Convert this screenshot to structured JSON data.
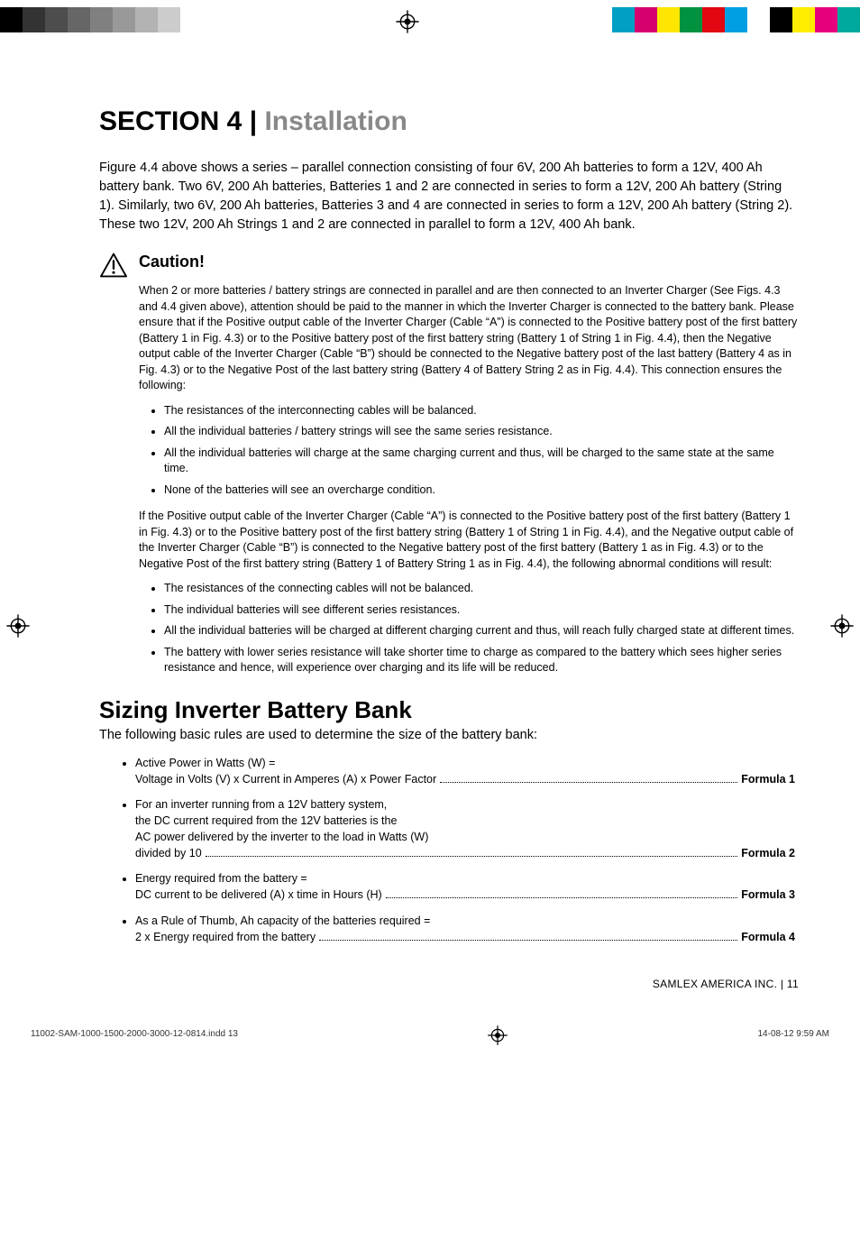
{
  "printmarks": {
    "grayscale": [
      "#000000",
      "#333333",
      "#4d4d4d",
      "#666666",
      "#808080",
      "#999999",
      "#b3b3b3",
      "#cccccc",
      "#ffffff"
    ],
    "colors": [
      "#00a0c6",
      "#d6006e",
      "#ffe600",
      "#00923f",
      "#e30613",
      "#009fe3",
      "#ffffff",
      "#000000",
      "#ffed00",
      "#e6007e",
      "#00a99d"
    ]
  },
  "title_prefix": "SECTION 4  |  ",
  "title_name": "Installation",
  "intro": "Figure 4.4 above shows a series – parallel connection consisting of four 6V, 200 Ah batteries to form a 12V, 400 Ah battery bank. Two 6V, 200 Ah batteries, Batteries 1 and 2 are connected in series to form a 12V, 200 Ah battery (String 1). Similarly, two 6V, 200 Ah batteries, Batteries 3 and 4 are connected in series to form a 12V, 200 Ah battery (String 2). These two 12V, 200 Ah Strings 1 and 2 are connected in parallel to form a 12V, 400 Ah bank.",
  "caution_label": "Caution!",
  "caution_p1": "When 2 or more batteries / battery strings are connected in parallel and are then connected to an Inverter Charger (See Figs. 4.3 and 4.4 given above), attention should be paid to the manner in which the Inverter Charger is connected to the battery bank. Please ensure that if the Positive output cable of the Inverter Charger (Cable “A”) is connected to the Positive battery post of the first battery (Battery 1 in Fig. 4.3) or to the Positive battery post of the first battery string (Battery 1 of String 1 in Fig. 4.4), then the Negative output cable of the Inverter Charger (Cable “B”) should be connected to the Negative battery post of the last battery (Battery 4 as in Fig. 4.3) or to the Negative Post of the last battery string (Battery 4 of Battery String 2 as in Fig. 4.4). This connection ensures the following:",
  "caution_list1": [
    "The resistances of the interconnecting cables will be balanced.",
    "All the individual batteries / battery strings will see the same series resistance.",
    "All the individual batteries will charge at the same charging current and thus, will be charged to the same state at the same time.",
    "None of the batteries will see an overcharge condition."
  ],
  "caution_p2": "If the Positive output cable of the Inverter Charger  (Cable “A”) is connected to the Positive battery post of the first battery (Battery 1 in Fig. 4.3) or to the Positive battery post of the first battery string (Battery 1 of String 1 in Fig. 4.4), and the Negative output cable of the Inverter Charger  (Cable “B”) is connected to the Negative battery post of the first battery (Battery 1 as in Fig. 4.3) or to the Negative Post of the first battery string (Battery 1 of Battery String 1 as in Fig. 4.4), the following abnormal conditions will result:",
  "caution_list2": [
    "The resistances of the connecting cables will not be balanced.",
    "The individual batteries will see different series resistances.",
    "All the individual batteries will be charged at different charging current and thus, will reach fully charged state at different times.",
    "The battery with lower series resistance will take shorter time to charge as compared to the battery which sees higher series resistance and hence, will experience over charging and its life will be reduced."
  ],
  "h2": "Sizing Inverter Battery Bank",
  "subhead": "The following basic rules are used to determine the size of the battery bank:",
  "formulas": [
    {
      "lines": [
        "Active Power in Watts (W) ="
      ],
      "tail": "Voltage in Volts (V) x Current in Amperes (A) x Power Factor",
      "label": "Formula 1"
    },
    {
      "lines": [
        "For an inverter running from a 12V battery system,",
        "the DC current required from the 12V batteries is the",
        "AC power delivered by the inverter to the load in Watts (W)"
      ],
      "tail": "divided by 10",
      "label": "Formula 2"
    },
    {
      "lines": [
        "Energy required from the battery ="
      ],
      "tail": "DC current to be delivered (A) x time in Hours (H)",
      "label": "Formula 3"
    },
    {
      "lines": [
        "As a Rule of Thumb, Ah capacity of the batteries required ="
      ],
      "tail": "2 x Energy required from the battery",
      "label": "Formula 4"
    }
  ],
  "footer": "SAMLEX AMERICA INC.  |  11",
  "bottom_left": "11002-SAM-1000-1500-2000-3000-12-0814.indd   13",
  "bottom_right": "14-08-12   9:59 AM"
}
